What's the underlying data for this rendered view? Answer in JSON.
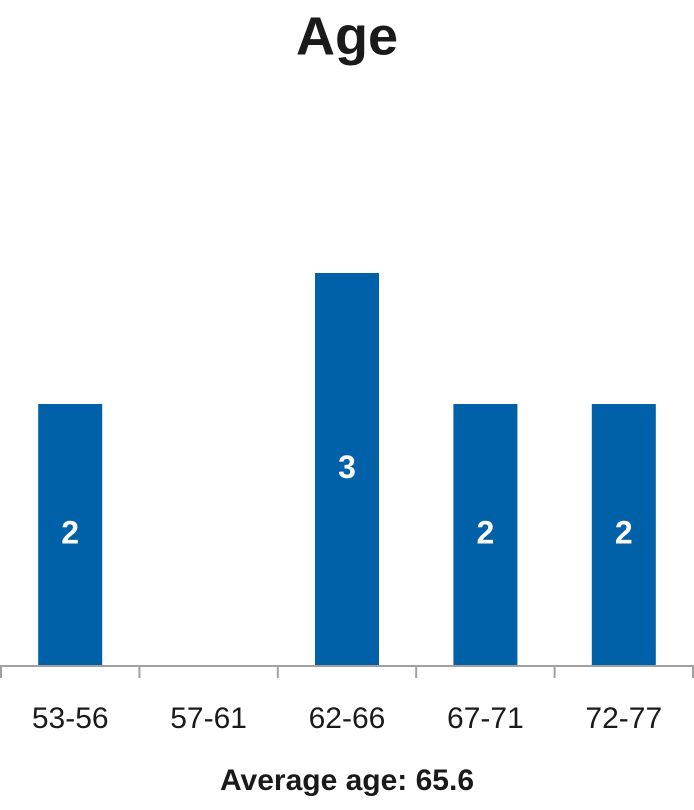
{
  "chart_data": {
    "type": "bar",
    "title": "Age",
    "categories": [
      "53-56",
      "57-61",
      "62-66",
      "67-71",
      "72-77"
    ],
    "values": [
      2,
      0,
      3,
      2,
      2
    ],
    "color": "#0060a8",
    "ylim": [
      0,
      4
    ],
    "xlabel": "Average age: 65.6",
    "grid": false
  }
}
